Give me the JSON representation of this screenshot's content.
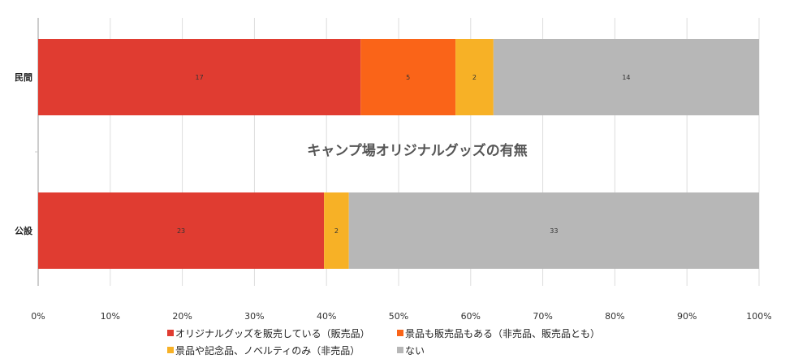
{
  "chart_data": {
    "type": "bar",
    "orientation": "horizontal",
    "stacked": "percent",
    "title": "キャンプ場オリジナルグッズの有無",
    "categories": [
      "民間",
      "公設"
    ],
    "series": [
      {
        "name": "オリジナルグッズを販売している（販売品）",
        "values": [
          17,
          23
        ],
        "color": "#e03c31"
      },
      {
        "name": "景品も販売品もある（非売品、販売品とも）",
        "values": [
          5,
          0
        ],
        "color": "#fa6418"
      },
      {
        "name": "景品や記念品、ノベルティのみ（非売品）",
        "values": [
          2,
          2
        ],
        "color": "#f7b126"
      },
      {
        "name": "ない",
        "values": [
          14,
          33
        ],
        "color": "#b7b7b7"
      }
    ],
    "xlim": [
      0,
      100
    ],
    "xticks": [
      "0%",
      "10%",
      "20%",
      "30%",
      "40%",
      "50%",
      "60%",
      "70%",
      "80%",
      "90%",
      "100%"
    ],
    "grid": true,
    "legend_position": "bottom"
  }
}
